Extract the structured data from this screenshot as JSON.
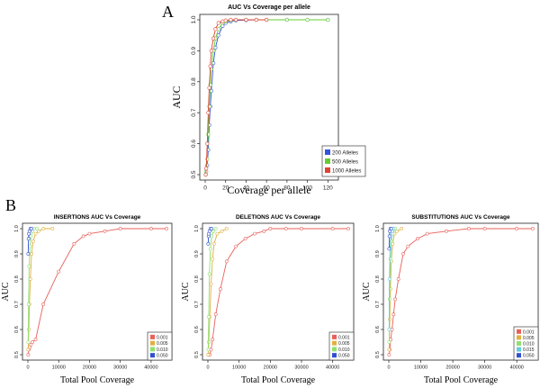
{
  "panels": {
    "A": "A",
    "B": "B"
  },
  "chart_data": [
    {
      "id": "A",
      "type": "line",
      "title": "AUC Vs Coverage per allele",
      "xlabel": "Coverage per allele",
      "ylabel": "AUC",
      "xlim": [
        0,
        125
      ],
      "ylim": [
        0.5,
        1.0
      ],
      "xticks": [
        0,
        20,
        40,
        60,
        80,
        100,
        120
      ],
      "yticks": [
        0.5,
        0.6,
        0.7,
        0.8,
        0.9,
        1.0
      ],
      "grid": false,
      "legend_position": "bottom-right",
      "series": [
        {
          "name": "200   Alleles",
          "color": "#3355dd",
          "x": [
            0.5,
            1,
            2,
            3,
            4,
            5,
            6,
            8,
            10,
            13,
            17,
            20,
            25,
            30,
            40,
            50,
            60,
            80,
            100,
            120
          ],
          "y": [
            0.5,
            0.51,
            0.53,
            0.58,
            0.66,
            0.72,
            0.77,
            0.86,
            0.91,
            0.95,
            0.98,
            0.99,
            0.995,
            0.998,
            0.999,
            1.0,
            1.0,
            1.0,
            1.0,
            1.0
          ]
        },
        {
          "name": "500   Alleles",
          "color": "#66cc33",
          "x": [
            0.5,
            1,
            2,
            3,
            4,
            5,
            6,
            8,
            10,
            13,
            17,
            20,
            25,
            30,
            40,
            50,
            60,
            80,
            100,
            120
          ],
          "y": [
            0.5,
            0.51,
            0.55,
            0.63,
            0.72,
            0.79,
            0.84,
            0.9,
            0.94,
            0.97,
            0.99,
            0.995,
            0.998,
            1.0,
            1.0,
            1.0,
            1.0,
            1.0,
            1.0,
            1.0
          ]
        },
        {
          "name": "1000  Alleles",
          "color": "#dd4433",
          "x": [
            0.5,
            1,
            2,
            3,
            4,
            5,
            6,
            8,
            10,
            13,
            17,
            20,
            25,
            30,
            40,
            50,
            60
          ],
          "y": [
            0.5,
            0.52,
            0.6,
            0.7,
            0.78,
            0.85,
            0.9,
            0.94,
            0.97,
            0.99,
            0.995,
            0.998,
            1.0,
            1.0,
            1.0,
            1.0,
            1.0
          ]
        }
      ]
    },
    {
      "id": "B1",
      "type": "line",
      "title": "INSERTIONS AUC Vs Coverage",
      "xlabel": "Total Pool Coverage",
      "ylabel": "AUC",
      "xlim": [
        0,
        45000
      ],
      "ylim": [
        0.5,
        1.0
      ],
      "xticks": [
        0,
        10000,
        20000,
        30000,
        40000
      ],
      "yticks": [
        0.5,
        0.6,
        0.7,
        0.8,
        0.9,
        1.0
      ],
      "grid": false,
      "legend_position": "bottom-right",
      "series": [
        {
          "name": "0.001",
          "color": "#e8605a",
          "x": [
            100,
            300,
            600,
            1000,
            1500,
            2500,
            5000,
            10000,
            15000,
            18000,
            20000,
            25000,
            30000,
            40000,
            45000
          ],
          "y": [
            0.5,
            0.52,
            0.53,
            0.54,
            0.55,
            0.56,
            0.7,
            0.83,
            0.94,
            0.97,
            0.98,
            0.99,
            1.0,
            1.0,
            1.0
          ]
        },
        {
          "name": "0.005",
          "color": "#e0b040",
          "x": [
            100,
            300,
            500,
            800,
            1200,
            1700,
            2500,
            3500,
            5000,
            8000
          ],
          "y": [
            0.52,
            0.6,
            0.7,
            0.8,
            0.9,
            0.95,
            0.98,
            0.99,
            1.0,
            1.0
          ]
        },
        {
          "name": "0.010",
          "color": "#90e070",
          "x": [
            100,
            200,
            400,
            700,
            1000,
            1500,
            2000,
            3000
          ],
          "y": [
            0.55,
            0.7,
            0.85,
            0.93,
            0.97,
            0.99,
            1.0,
            1.0
          ]
        },
        {
          "name": "0.050",
          "color": "#3050d0",
          "x": [
            100,
            200,
            300,
            500,
            800,
            1200
          ],
          "y": [
            0.9,
            0.96,
            0.98,
            0.99,
            1.0,
            1.0
          ]
        }
      ]
    },
    {
      "id": "B2",
      "type": "line",
      "title": "DELETIONS AUC Vs Coverage",
      "xlabel": "Total Pool Coverage",
      "ylabel": "AUC",
      "xlim": [
        0,
        45000
      ],
      "ylim": [
        0.5,
        1.0
      ],
      "xticks": [
        0,
        10000,
        20000,
        30000,
        40000
      ],
      "yticks": [
        0.5,
        0.6,
        0.7,
        0.8,
        0.9,
        1.0
      ],
      "grid": false,
      "legend_position": "bottom-right",
      "series": [
        {
          "name": "0.001",
          "color": "#e8605a",
          "x": [
            100,
            300,
            600,
            1000,
            1500,
            2500,
            4000,
            6000,
            9000,
            12000,
            15000,
            18000,
            20000,
            25000,
            30000,
            40000,
            45000
          ],
          "y": [
            0.5,
            0.5,
            0.5,
            0.52,
            0.56,
            0.66,
            0.76,
            0.87,
            0.93,
            0.96,
            0.98,
            0.99,
            1.0,
            1.0,
            1.0,
            1.0,
            1.0
          ]
        },
        {
          "name": "0.005",
          "color": "#e0b040",
          "x": [
            100,
            300,
            600,
            1000,
            1500,
            2000,
            3000,
            4500,
            6000
          ],
          "y": [
            0.5,
            0.55,
            0.65,
            0.78,
            0.88,
            0.94,
            0.98,
            0.99,
            1.0
          ]
        },
        {
          "name": "0.010",
          "color": "#90e070",
          "x": [
            100,
            250,
            500,
            800,
            1200,
            1800,
            2500
          ],
          "y": [
            0.52,
            0.65,
            0.82,
            0.92,
            0.97,
            0.99,
            1.0
          ]
        },
        {
          "name": "0.050",
          "color": "#3050d0",
          "x": [
            100,
            200,
            300,
            500,
            800,
            1200
          ],
          "y": [
            0.94,
            0.97,
            0.98,
            0.99,
            1.0,
            1.0
          ]
        }
      ]
    },
    {
      "id": "B3",
      "type": "line",
      "title": "SUBSTITUTIONS AUC Vs Coverage",
      "xlabel": "Total Pool Coverage",
      "ylabel": "AUC",
      "xlim": [
        0,
        45000
      ],
      "ylim": [
        0.5,
        1.0
      ],
      "xticks": [
        0,
        10000,
        20000,
        30000,
        40000
      ],
      "yticks": [
        0.5,
        0.6,
        0.7,
        0.8,
        0.9,
        1.0
      ],
      "grid": false,
      "legend_position": "bottom-right",
      "series": [
        {
          "name": "0.001",
          "color": "#e8605a",
          "x": [
            100,
            300,
            600,
            1000,
            1500,
            2000,
            3000,
            4500,
            6000,
            9000,
            12000,
            18000,
            25000,
            30000,
            40000,
            45000
          ],
          "y": [
            0.5,
            0.52,
            0.56,
            0.6,
            0.66,
            0.72,
            0.8,
            0.9,
            0.93,
            0.96,
            0.98,
            0.99,
            1.0,
            1.0,
            1.0,
            1.0
          ]
        },
        {
          "name": "0.005",
          "color": "#e0b040",
          "x": [
            100,
            300,
            500,
            800,
            1200,
            1800,
            2500,
            4000
          ],
          "y": [
            0.52,
            0.64,
            0.76,
            0.87,
            0.94,
            0.98,
            0.99,
            1.0
          ]
        },
        {
          "name": "0.010",
          "color": "#90e070",
          "x": [
            100,
            250,
            500,
            800,
            1200,
            2000
          ],
          "y": [
            0.55,
            0.72,
            0.88,
            0.95,
            0.98,
            1.0
          ]
        },
        {
          "name": "0.015",
          "color": "#66ccdd",
          "x": [
            100,
            200,
            400,
            700,
            1000,
            1500
          ],
          "y": [
            0.6,
            0.8,
            0.92,
            0.97,
            0.99,
            1.0
          ]
        },
        {
          "name": "0.050",
          "color": "#3050d0",
          "x": [
            100,
            200,
            300,
            500,
            800
          ],
          "y": [
            0.92,
            0.97,
            0.99,
            1.0,
            1.0
          ]
        }
      ]
    }
  ]
}
